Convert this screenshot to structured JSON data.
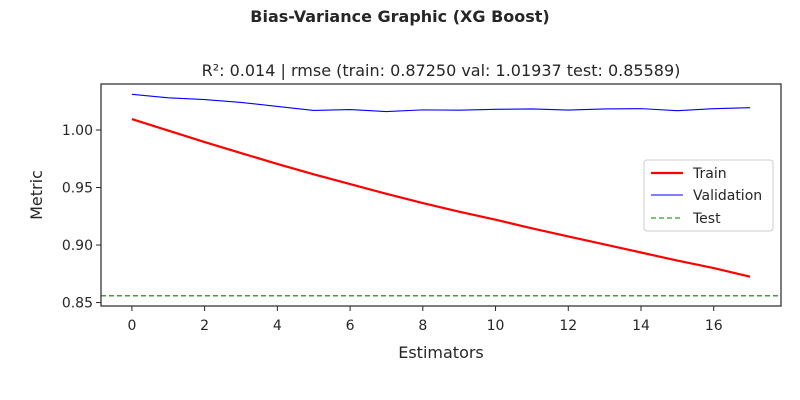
{
  "chart_data": {
    "type": "line",
    "suptitle": "Bias-Variance Graphic (XG Boost)",
    "title": "R²: 0.014 | rmse (train: 0.87250  val: 1.01937  test: 0.85589)",
    "xlabel": "Estimators",
    "ylabel": "Metric",
    "xlim": [
      -0.85,
      17.85
    ],
    "ylim": [
      0.847,
      1.04
    ],
    "xticks": [
      0,
      2,
      4,
      6,
      8,
      10,
      12,
      14,
      16
    ],
    "yticks": [
      0.85,
      0.9,
      0.95,
      1.0
    ],
    "ytick_labels": [
      "0.85",
      "0.90",
      "0.95",
      "1.00"
    ],
    "x": [
      0,
      1,
      2,
      3,
      4,
      5,
      6,
      7,
      8,
      9,
      10,
      11,
      12,
      13,
      14,
      15,
      16,
      17
    ],
    "series": [
      {
        "name": "Train",
        "color": "#ff0000",
        "style": "solid",
        "width": "thick",
        "values": [
          1.0095,
          0.9995,
          0.9895,
          0.98,
          0.9705,
          0.9615,
          0.953,
          0.9445,
          0.9365,
          0.929,
          0.922,
          0.9145,
          0.9075,
          0.9005,
          0.8935,
          0.8865,
          0.88,
          0.8725
        ]
      },
      {
        "name": "Validation",
        "color": "#0000ff",
        "style": "solid",
        "width": "thin",
        "values": [
          1.031,
          1.028,
          1.0265,
          1.024,
          1.0205,
          1.017,
          1.0178,
          1.016,
          1.0175,
          1.0172,
          1.018,
          1.0183,
          1.0173,
          1.0183,
          1.0186,
          1.0168,
          1.0185,
          1.0194
        ]
      },
      {
        "name": "Test",
        "color": "#008000",
        "style": "dashed",
        "width": "thin",
        "hline": 0.85589
      }
    ],
    "grid": false,
    "legend_position": "center-right"
  }
}
